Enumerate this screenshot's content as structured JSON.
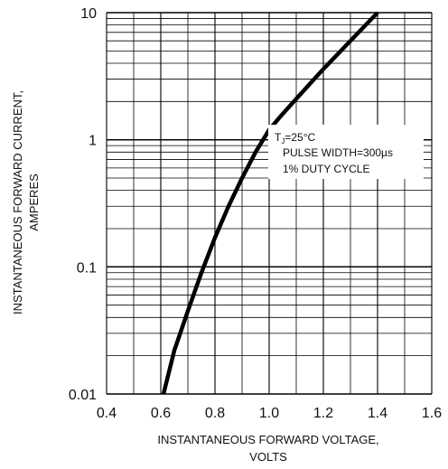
{
  "chart_data": {
    "type": "line",
    "title": "",
    "xlabel_lines": [
      "INSTANTANEOUS FORWARD VOLTAGE,",
      "VOLTS"
    ],
    "ylabel_lines": [
      "INSTANTANEOUS FORWARD CURRENT,",
      "AMPERES"
    ],
    "x_scale": "linear",
    "y_scale": "log",
    "xlim": [
      0.4,
      1.6
    ],
    "ylim": [
      0.01,
      10
    ],
    "x_ticks": [
      0.4,
      0.6,
      0.8,
      1.0,
      1.2,
      1.4,
      1.6
    ],
    "x_tick_labels": [
      "0.4",
      "0.6",
      "0.8",
      "1.0",
      "1.2",
      "1.4",
      "1.6"
    ],
    "y_ticks": [
      0.01,
      0.1,
      1,
      10
    ],
    "y_tick_labels": [
      "0.01",
      "0.1",
      "1",
      "10"
    ],
    "grid": true,
    "legend": "none",
    "series": [
      {
        "x": [
          0.61,
          0.65,
          0.7,
          0.75,
          0.8,
          0.85,
          0.9,
          0.95,
          1.0,
          1.05,
          1.1,
          1.2,
          1.3,
          1.4
        ],
        "y": [
          0.01,
          0.022,
          0.045,
          0.09,
          0.17,
          0.3,
          0.5,
          0.8,
          1.2,
          1.6,
          2.1,
          3.6,
          6.0,
          10.0
        ]
      }
    ],
    "annotations": {
      "tj_main": "T",
      "tj_sub": "J",
      "tj_rest": "=25°C",
      "pulse": "PULSE WIDTH=300µs",
      "duty": "1% DUTY CYCLE"
    },
    "colors": {
      "curve": "#000000",
      "grid": "#000000",
      "text": "#111111"
    }
  }
}
